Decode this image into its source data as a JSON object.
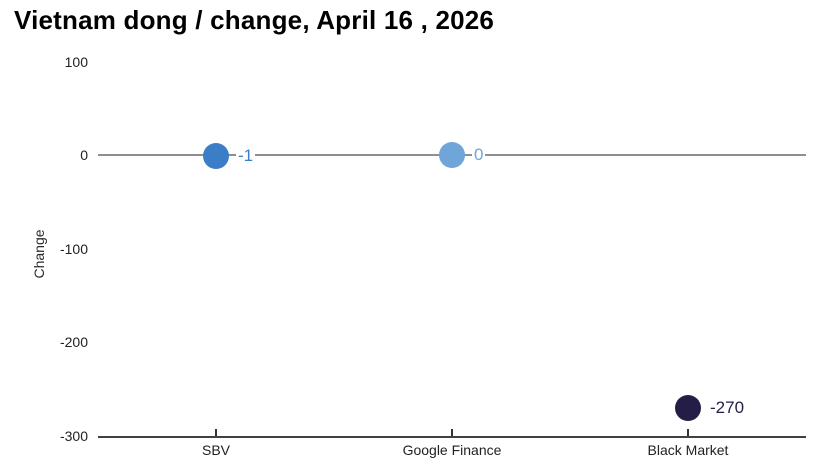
{
  "header": {
    "title": "Vietnam dong / change, April 16 , 2026"
  },
  "chart_data": {
    "type": "scatter",
    "title": "Vietnam dong / change, April 16 , 2026",
    "xlabel": "",
    "ylabel": "Change",
    "categories": [
      "SBV",
      "Google Finance",
      "Black Market"
    ],
    "values": [
      -1,
      0,
      -270
    ],
    "point_labels": [
      "-1",
      "0",
      "-270"
    ],
    "point_colors": [
      "#3b7dc6",
      "#6fa5d9",
      "#241e46"
    ],
    "yticks": [
      100,
      0,
      -100,
      -200,
      -300
    ],
    "ylim": [
      -300,
      100
    ],
    "grid": "zero-line-only",
    "legend": "none",
    "zero_line_color": "#8f8f8f",
    "axis_line_color": "#404040",
    "tick_color": "#333333",
    "text_color": "#222222",
    "background": "#ffffff"
  }
}
